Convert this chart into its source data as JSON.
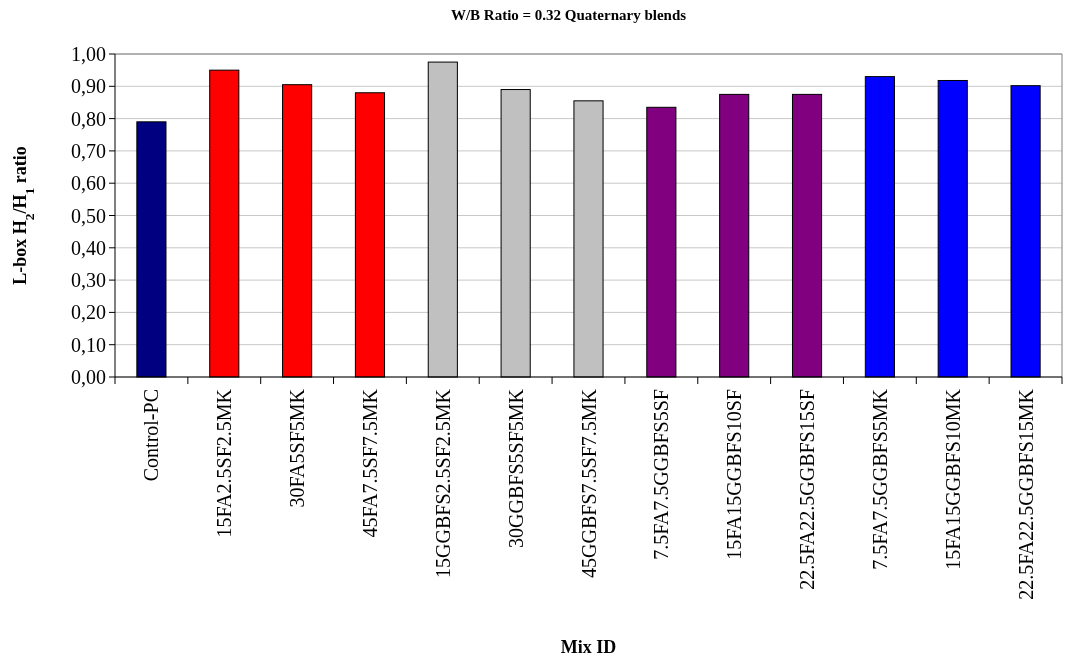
{
  "chart_data": {
    "type": "bar",
    "title": "W/B Ratio = 0.32 Quaternary blends",
    "xlabel": "Mix ID",
    "ylabel": "L-box H$_{2}$/H$_{1}$ ratio",
    "categories": [
      "Control-PC",
      "15FA2.5SF2.5MK",
      "30FA5SF5MK",
      "45FA7.5SF7.5MK",
      "15GGBFS2.5SF2.5MK",
      "30GGBFS5SF5MK",
      "45GGBFS7.5SF7.5MK",
      "7.5FA7.5GGBFS5SF",
      "15FA15GGBFS10SF",
      "22.5FA22.5GGBFS15SF",
      "7.5FA7.5GGBFS5MK",
      "15FA15GGBFS10MK",
      "22.5FA22.5GGBFS15MK"
    ],
    "values": [
      0.79,
      0.95,
      0.905,
      0.88,
      0.975,
      0.89,
      0.855,
      0.835,
      0.875,
      0.875,
      0.93,
      0.918,
      0.902
    ],
    "colors": [
      "#000080",
      "#ff0000",
      "#ff0000",
      "#ff0000",
      "#c0c0c0",
      "#c0c0c0",
      "#c0c0c0",
      "#800080",
      "#800080",
      "#800080",
      "#0000ff",
      "#0000ff",
      "#0000ff"
    ],
    "ylim": [
      0,
      1
    ],
    "yticks": [
      {
        "value": 0,
        "label": "0,00"
      },
      {
        "value": 0.1,
        "label": "0,10"
      },
      {
        "value": 0.2,
        "label": "0,20"
      },
      {
        "value": 0.3,
        "label": "0,30"
      },
      {
        "value": 0.4,
        "label": "0,40"
      },
      {
        "value": 0.5,
        "label": "0,50"
      },
      {
        "value": 0.6,
        "label": "0,60"
      },
      {
        "value": 0.7,
        "label": "0,70"
      },
      {
        "value": 0.8,
        "label": "0,80"
      },
      {
        "value": 0.9,
        "label": "0,90"
      },
      {
        "value": 1,
        "label": "1,00"
      }
    ],
    "grid": "y"
  }
}
